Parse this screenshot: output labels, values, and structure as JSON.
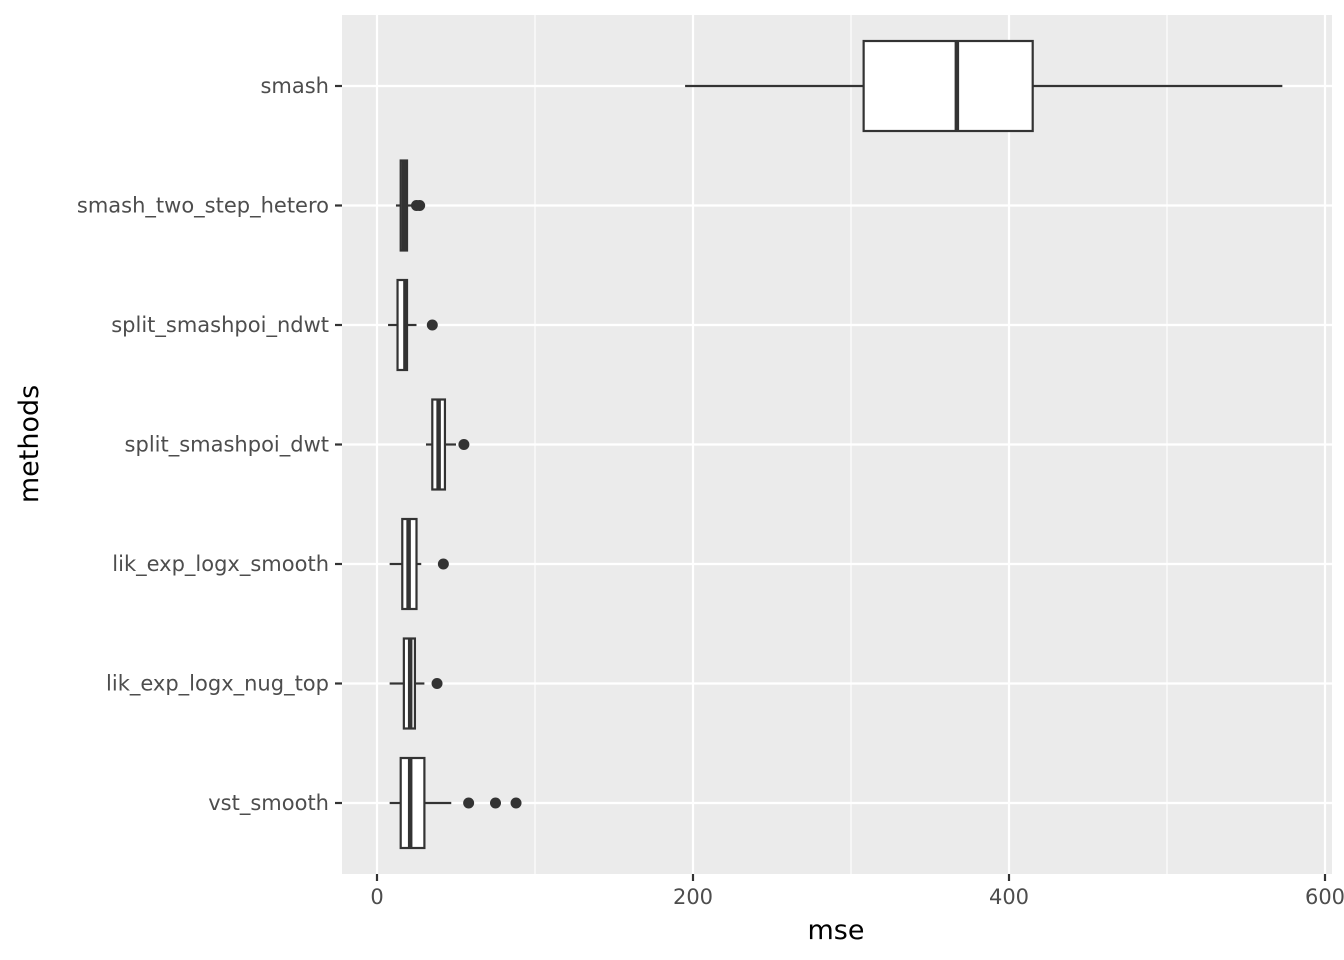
{
  "chart_data": {
    "type": "boxplot",
    "orientation": "horizontal",
    "xlabel": "mse",
    "ylabel": "methods",
    "xlim": [
      -5,
      600
    ],
    "xticks": [
      0,
      200,
      400,
      600
    ],
    "grid": true,
    "categories": [
      "vst_smooth",
      "lik_exp_logx_nug_top",
      "lik_exp_logx_smooth",
      "split_smashpoi_dwt",
      "split_smashpoi_ndwt",
      "smash_two_step_hetero",
      "smash"
    ],
    "boxes": [
      {
        "category": "vst_smooth",
        "whisker_low": 8,
        "q1": 15,
        "median": 21,
        "q3": 30,
        "whisker_high": 47,
        "outliers": [
          58,
          75,
          88
        ]
      },
      {
        "category": "lik_exp_logx_nug_top",
        "whisker_low": 8,
        "q1": 17,
        "median": 21,
        "q3": 24,
        "whisker_high": 30,
        "outliers": [
          38
        ]
      },
      {
        "category": "lik_exp_logx_smooth",
        "whisker_low": 8,
        "q1": 16,
        "median": 20,
        "q3": 25,
        "whisker_high": 28,
        "outliers": [
          42
        ]
      },
      {
        "category": "split_smashpoi_dwt",
        "whisker_low": 31,
        "q1": 35,
        "median": 39,
        "q3": 43,
        "whisker_high": 50,
        "outliers": [
          55
        ]
      },
      {
        "category": "split_smashpoi_ndwt",
        "whisker_low": 7,
        "q1": 13,
        "median": 18,
        "q3": 19,
        "whisker_high": 25,
        "outliers": [
          35
        ]
      },
      {
        "category": "smash_two_step_hetero",
        "whisker_low": 12,
        "q1": 15,
        "median": 17,
        "q3": 19,
        "whisker_high": 22,
        "outliers": [
          25,
          27
        ]
      },
      {
        "category": "smash",
        "whisker_low": 195,
        "q1": 308,
        "median": 367,
        "q3": 415,
        "whisker_high": 573,
        "outliers": []
      }
    ],
    "colors": {
      "panel": "#ebebeb",
      "grid": "#ffffff",
      "box_fill": "#ffffff",
      "box_stroke": "#333333",
      "tick_text": "#4d4d4d",
      "title_text": "#000000"
    }
  }
}
